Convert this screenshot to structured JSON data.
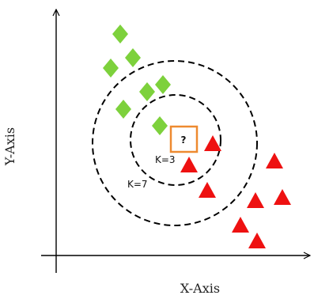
{
  "axes": {
    "x_label": "X-Axis",
    "y_label": "Y-Axis"
  },
  "rings": [
    {
      "label": "K=3"
    },
    {
      "label": "K=7"
    }
  ],
  "query": {
    "symbol": "?",
    "border_color": "#ee8a30"
  },
  "classes": {
    "class_a": {
      "shape": "diamond",
      "color": "#7dd13c"
    },
    "class_b": {
      "shape": "triangle",
      "color": "#ee1111"
    }
  },
  "colors": {
    "axis": "#000000",
    "ring": "#000000"
  }
}
